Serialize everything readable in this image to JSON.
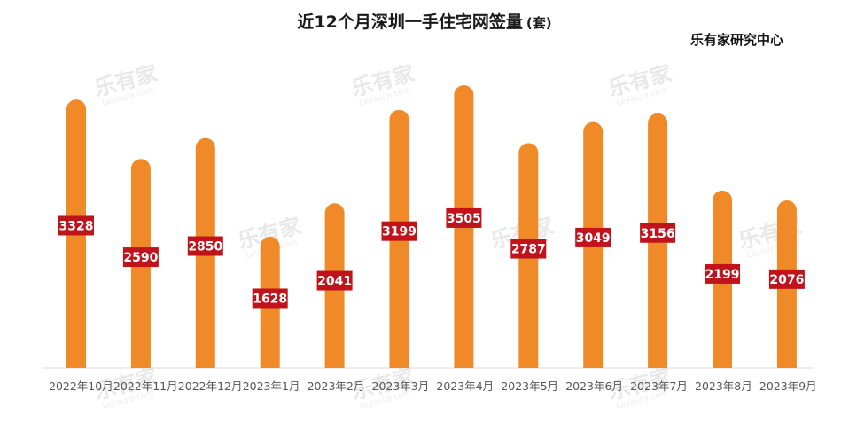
{
  "chart_data": {
    "type": "bar",
    "title": "近12个月深圳一手住宅网签量",
    "unit": "(套)",
    "source": "乐有家研究中心",
    "categories": [
      "2022年10月",
      "2022年11月",
      "2022年12月",
      "2023年1月",
      "2023年2月",
      "2023年3月",
      "2023年4月",
      "2023年5月",
      "2023年6月",
      "2023年7月",
      "2023年8月",
      "2023年9月"
    ],
    "values": [
      3328,
      2590,
      2850,
      1628,
      2041,
      3199,
      3505,
      2787,
      3049,
      3156,
      2199,
      2076
    ],
    "xlabel": "",
    "ylabel": "",
    "ylim": [
      0,
      3600
    ],
    "grid": false,
    "legend": "none",
    "bar_color": "#f08a28",
    "label_color": "#c0141c",
    "watermark": {
      "brand": "乐有家",
      "site": "Leyoujia.com"
    }
  }
}
